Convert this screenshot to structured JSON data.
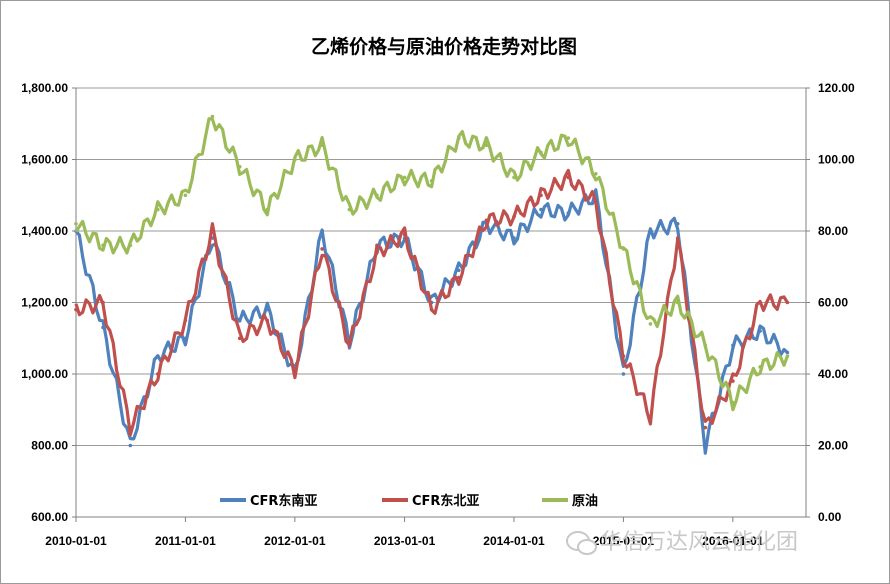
{
  "chart_data": {
    "type": "line",
    "title": "乙烯价格与原油价格走势对比图",
    "x": [
      "2010-01-01",
      "2010-04-01",
      "2010-07-01",
      "2010-10-01",
      "2011-01-01",
      "2011-04-01",
      "2011-07-01",
      "2011-10-01",
      "2012-01-01",
      "2012-04-01",
      "2012-07-01",
      "2012-10-01",
      "2013-01-01",
      "2013-04-01",
      "2013-07-01",
      "2013-10-01",
      "2014-01-01",
      "2014-04-01",
      "2014-07-01",
      "2014-10-01",
      "2015-01-01",
      "2015-04-01",
      "2015-07-01",
      "2015-10-01",
      "2016-01-01",
      "2016-04-01",
      "2016-07-01"
    ],
    "x_ticks": [
      "2010-01-01",
      "2011-01-01",
      "2012-01-01",
      "2013-01-01",
      "2014-01-01",
      "2015-01-01",
      "2016-01-01"
    ],
    "y_left": {
      "ticks": [
        "600.00",
        "800.00",
        "1,000.00",
        "1,200.00",
        "1,400.00",
        "1,600.00",
        "1,800.00"
      ],
      "range": [
        600,
        1800
      ]
    },
    "y_right": {
      "ticks": [
        "0.00",
        "20.00",
        "40.00",
        "60.00",
        "80.00",
        "100.00",
        "120.00"
      ],
      "range": [
        0,
        120
      ]
    },
    "grid": true,
    "legend_position": "bottom",
    "series": [
      {
        "name": "CFR东南亚",
        "axis": "left",
        "color": "#4f81bd",
        "values": [
          1400,
          1130,
          800,
          1050,
          1100,
          1380,
          1150,
          1180,
          1000,
          1400,
          1090,
          1360,
          1380,
          1200,
          1290,
          1420,
          1380,
          1460,
          1450,
          1500,
          1000,
          1400,
          1420,
          800,
          1080,
          1120,
          1060
        ]
      },
      {
        "name": "CFR东北亚",
        "axis": "left",
        "color": "#c0504d",
        "values": [
          1180,
          1200,
          850,
          1000,
          1150,
          1400,
          1100,
          1150,
          1010,
          1350,
          1080,
          1340,
          1390,
          1180,
          1270,
          1430,
          1440,
          1500,
          1550,
          1480,
          1050,
          880,
          1380,
          850,
          980,
          1200,
          1200
        ]
      },
      {
        "name": "原油",
        "axis": "right",
        "color": "#9bbb59",
        "values": [
          82,
          76,
          76,
          86,
          90,
          112,
          98,
          86,
          100,
          104,
          86,
          90,
          95,
          94,
          106,
          104,
          95,
          102,
          106,
          96,
          75,
          54,
          60,
          48,
          32,
          42,
          45
        ]
      }
    ]
  },
  "watermark": {
    "icon": "wechat-icon",
    "text": "华信万达风云能化团"
  }
}
